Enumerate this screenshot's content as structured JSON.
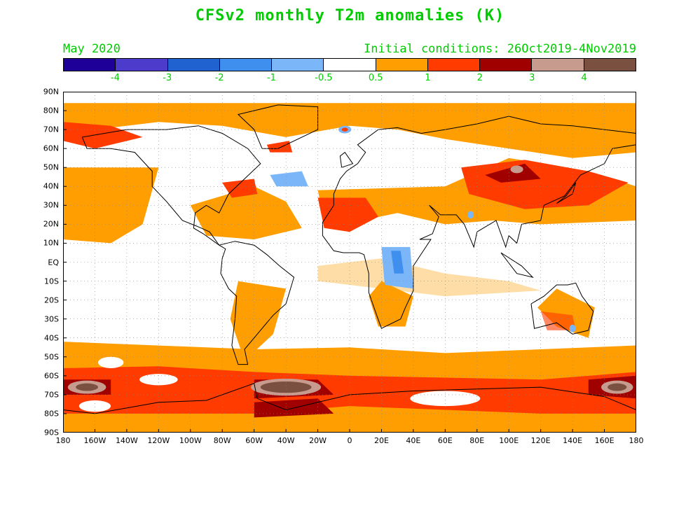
{
  "title": "CFSv2 monthly T2m anomalies (K)",
  "forecast_month": "May 2020",
  "initial_conditions": "Initial conditions: 26Oct2019-4Nov2019",
  "text_color": "#00cc00",
  "colorbar": {
    "colors": [
      "#1e0098",
      "#4d3ccc",
      "#1f62d0",
      "#3f90ee",
      "#7bb6f8",
      "#ffffff",
      "#ff9e00",
      "#ff3b00",
      "#a10000",
      "#c79b8d",
      "#7a5040"
    ],
    "labels": [
      "-4",
      "-3",
      "-2",
      "-1",
      "-0.5",
      "0.5",
      "1",
      "2",
      "3",
      "4"
    ]
  },
  "lat_labels": [
    "90N",
    "80N",
    "70N",
    "60N",
    "50N",
    "40N",
    "30N",
    "20N",
    "10N",
    "EQ",
    "10S",
    "20S",
    "30S",
    "40S",
    "50S",
    "60S",
    "70S",
    "80S",
    "90S"
  ],
  "lon_labels": [
    "180",
    "160W",
    "140W",
    "120W",
    "100W",
    "80W",
    "60W",
    "40W",
    "20W",
    "0",
    "20E",
    "40E",
    "60E",
    "80E",
    "100E",
    "120E",
    "140E",
    "160E",
    "180"
  ]
}
